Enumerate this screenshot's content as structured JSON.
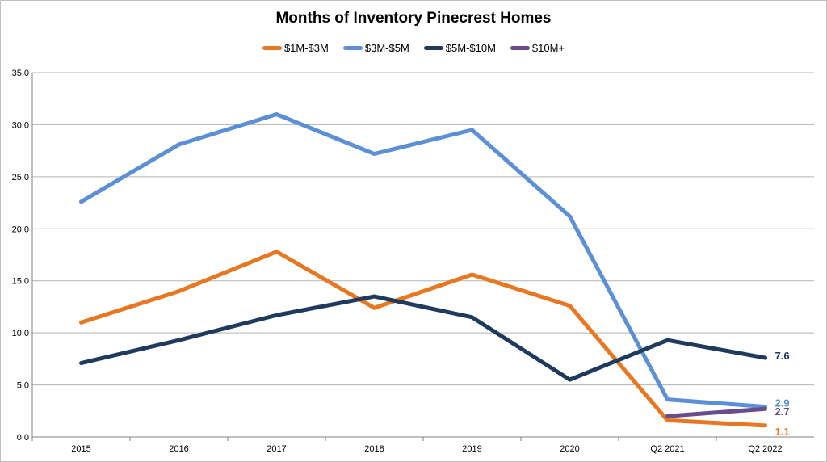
{
  "chart_data": {
    "type": "line",
    "title": "Months of Inventory Pinecrest Homes",
    "categories": [
      "2015",
      "2016",
      "2017",
      "2018",
      "2019",
      "2020",
      "Q2 2021",
      "Q2 2022"
    ],
    "ylim": [
      0,
      35
    ],
    "yticks": [
      "0.0",
      "5.0",
      "10.0",
      "15.0",
      "20.0",
      "25.0",
      "30.0",
      "35.0"
    ],
    "grid": true,
    "legend_position": "top",
    "series": [
      {
        "name": "$1M-$3M",
        "color": "#E87722",
        "values": [
          11.0,
          14.0,
          17.8,
          12.4,
          15.6,
          12.6,
          1.6,
          1.1
        ],
        "end_label": "1.1"
      },
      {
        "name": "$3M-$5M",
        "color": "#5B8FD6",
        "values": [
          22.6,
          28.1,
          31.0,
          27.2,
          29.5,
          21.2,
          3.6,
          2.9
        ],
        "end_label": "2.9"
      },
      {
        "name": "$5M-$10M",
        "color": "#1F3A5F",
        "values": [
          7.1,
          9.3,
          11.7,
          13.5,
          11.5,
          5.5,
          9.3,
          7.6
        ],
        "end_label": "7.6"
      },
      {
        "name": "$10M+",
        "color": "#6A4C8C",
        "values": [
          null,
          null,
          null,
          null,
          null,
          null,
          2.0,
          2.7
        ],
        "end_label": "2.7"
      }
    ]
  }
}
